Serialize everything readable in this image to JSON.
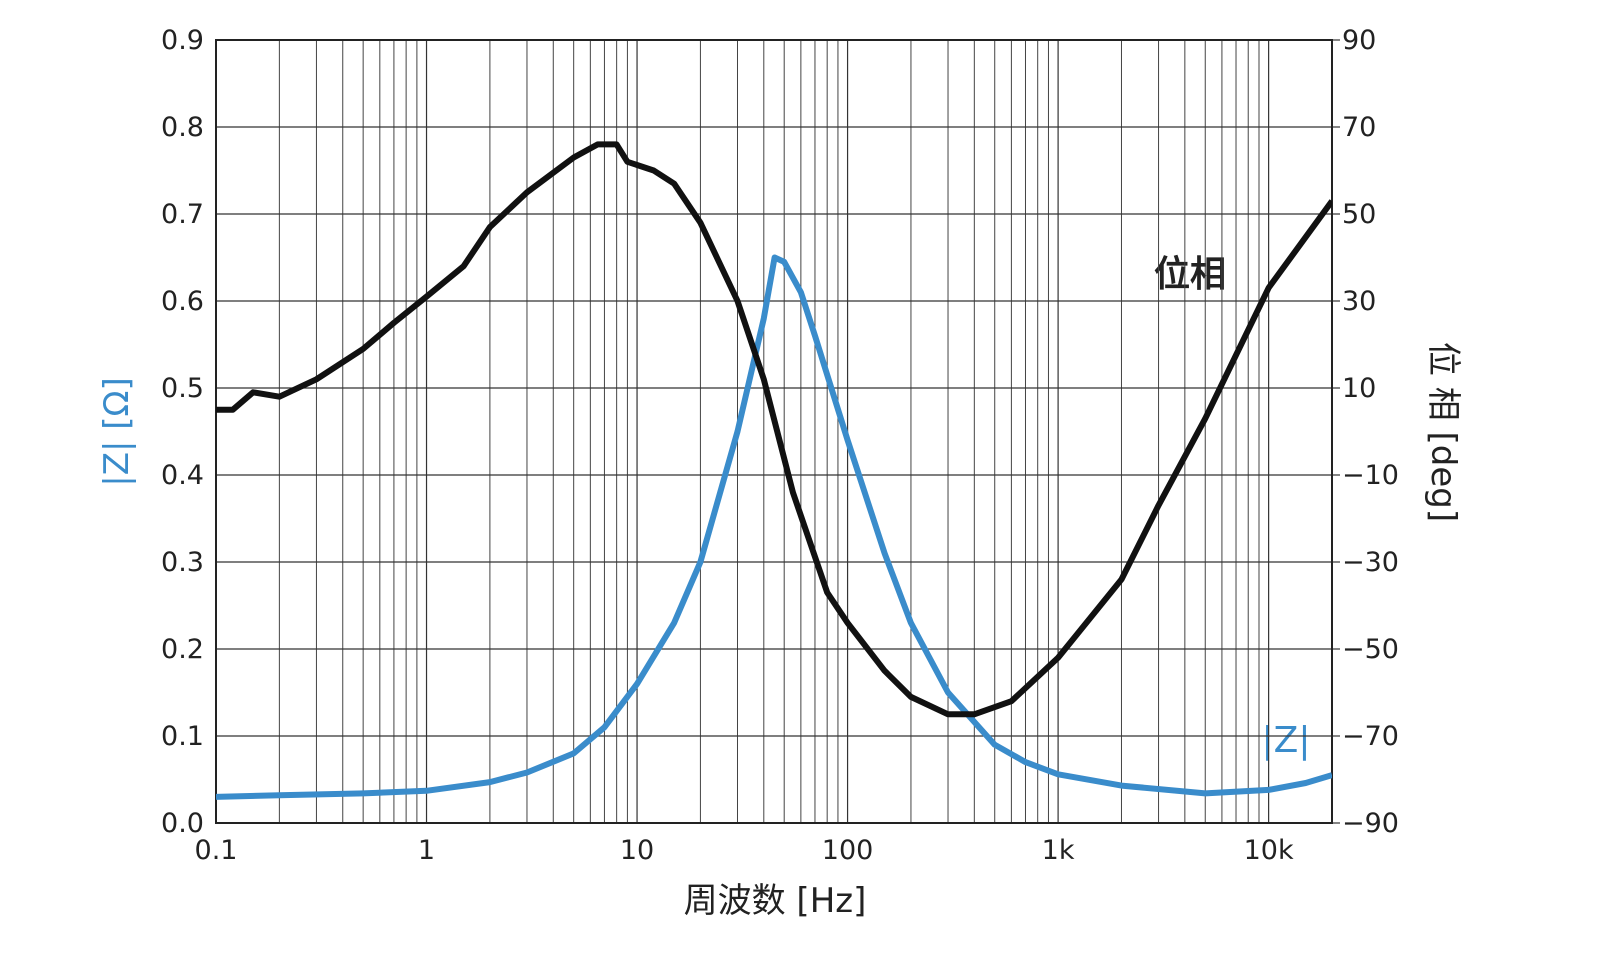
{
  "chart_data": {
    "type": "line",
    "xlabel": "周波数 [Hz]",
    "ylabel": "|Z| [Ω]",
    "y2label": "位 相 [deg]",
    "xscale": "log",
    "grid": true,
    "minor_grid": true,
    "xlim": [
      0.1,
      20000
    ],
    "xticks": [
      0.1,
      1,
      10,
      100,
      {
        "value": 1000,
        "label": "1k"
      },
      {
        "value": 10000,
        "label": "10k"
      }
    ],
    "ylim": [
      0,
      0.9
    ],
    "yticks": [
      {
        "value": 0,
        "label": "0.0"
      },
      0.1,
      0.2,
      0.3,
      0.4,
      0.5,
      0.6,
      0.7,
      0.8,
      0.9
    ],
    "y2lim": [
      -90,
      90
    ],
    "y2ticks": [
      {
        "value": -90,
        "label": "−90"
      },
      {
        "value": -70,
        "label": "−70"
      },
      {
        "value": -50,
        "label": "−50"
      },
      {
        "value": -30,
        "label": "−30"
      },
      {
        "value": -10,
        "label": "−10"
      },
      10,
      30,
      50,
      70,
      90
    ],
    "series": [
      {
        "name": "|Z|",
        "color": "#3a8ccb",
        "x": [
          0.1,
          0.2,
          0.5,
          1,
          2,
          3,
          5,
          7,
          10,
          15,
          20,
          30,
          40,
          45,
          50,
          60,
          70,
          100,
          150,
          200,
          300,
          500,
          700,
          1000,
          2000,
          5000,
          10000,
          15000,
          20000
        ],
        "values": [
          0.03,
          0.032,
          0.034,
          0.037,
          0.047,
          0.058,
          0.08,
          0.11,
          0.16,
          0.23,
          0.3,
          0.45,
          0.58,
          0.65,
          0.645,
          0.61,
          0.56,
          0.44,
          0.31,
          0.23,
          0.15,
          0.09,
          0.07,
          0.056,
          0.043,
          0.034,
          0.038,
          0.046,
          0.055
        ]
      },
      {
        "name": "位相",
        "color": "#111111",
        "axis": "y2",
        "x": [
          0.1,
          0.12,
          0.15,
          0.2,
          0.3,
          0.5,
          0.7,
          1,
          1.5,
          2,
          3,
          5,
          6.5,
          8,
          9,
          12,
          15,
          20,
          30,
          40,
          55,
          80,
          100,
          150,
          200,
          300,
          400,
          600,
          1000,
          2000,
          3000,
          5000,
          10000,
          20000
        ],
        "values": [
          5,
          5,
          9,
          8,
          12,
          19,
          25,
          31,
          38,
          47,
          55,
          63,
          66,
          66,
          62,
          60,
          57,
          48,
          30,
          12,
          -14,
          -37,
          -44,
          -55,
          -61,
          -65,
          -65,
          -62,
          -52,
          -34,
          -17,
          3,
          33,
          53
        ]
      }
    ]
  }
}
